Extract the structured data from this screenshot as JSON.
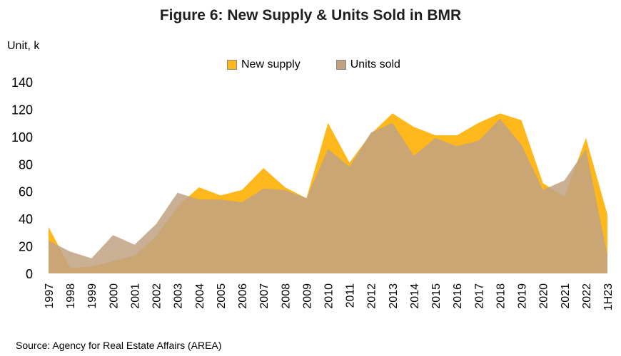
{
  "chart_data": {
    "type": "area",
    "title": "Figure 6: New Supply & Units Sold in BMR",
    "ylabel": "Unit, k",
    "xlabel": "",
    "categories": [
      "1997",
      "1998",
      "1999",
      "2000",
      "2001",
      "2002",
      "2003",
      "2004",
      "2005",
      "2006",
      "2007",
      "2008",
      "2009",
      "2010",
      "2011",
      "2012",
      "2013",
      "2014",
      "2015",
      "2016",
      "2017",
      "2018",
      "2019",
      "2020",
      "2021",
      "2022",
      "1H23"
    ],
    "series": [
      {
        "name": "New supply",
        "color": "#FFB81C",
        "values": [
          34,
          4,
          5,
          9,
          13,
          27,
          49,
          63,
          57,
          61,
          77,
          63,
          55,
          110,
          81,
          102,
          117,
          107,
          101,
          101,
          110,
          117,
          112,
          66,
          56,
          99,
          43
        ]
      },
      {
        "name": "Units sold",
        "color": "#BFA282",
        "values": [
          24,
          16,
          11,
          28,
          21,
          36,
          59,
          54,
          54,
          52,
          62,
          61,
          55,
          91,
          78,
          103,
          110,
          86,
          99,
          93,
          97,
          113,
          94,
          61,
          68,
          91,
          13
        ]
      }
    ],
    "ylim": [
      0,
      140
    ],
    "yticks": [
      0,
      20,
      40,
      60,
      80,
      100,
      120,
      140
    ],
    "grid": false,
    "legend": "top-center"
  },
  "source": "Source: Agency for Real Estate Affairs (AREA)"
}
